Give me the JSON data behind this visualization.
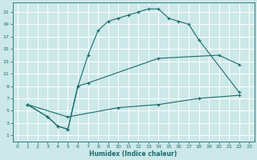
{
  "xlabel": "Humidex (Indice chaleur)",
  "bg_color": "#cce8e8",
  "grid_color": "#ffffff",
  "line_color": "#1a6b6b",
  "xlim": [
    -0.5,
    23.5
  ],
  "ylim": [
    0,
    22.5
  ],
  "xticks": [
    0,
    1,
    2,
    3,
    4,
    5,
    6,
    7,
    8,
    9,
    10,
    11,
    12,
    13,
    14,
    15,
    16,
    17,
    18,
    19,
    20,
    21,
    22,
    23
  ],
  "yticks": [
    1,
    3,
    5,
    7,
    9,
    11,
    13,
    15,
    17,
    19,
    21
  ],
  "curve1_x": [
    1,
    3,
    4,
    5,
    6,
    7,
    8,
    9,
    10,
    11,
    12,
    13,
    14,
    15,
    16,
    17,
    18,
    22
  ],
  "curve1_y": [
    6,
    4,
    2.5,
    2,
    9,
    14,
    18,
    19.5,
    20,
    20.5,
    21,
    21.5,
    21.5,
    20,
    19.5,
    19,
    16.5,
    8
  ],
  "curve2_x": [
    1,
    3,
    4,
    5,
    6,
    7,
    14,
    20,
    22
  ],
  "curve2_y": [
    6,
    4,
    2.5,
    2,
    9,
    9.5,
    13.5,
    14,
    12.5
  ],
  "curve3_x": [
    1,
    5,
    10,
    14,
    18,
    22
  ],
  "curve3_y": [
    6,
    4,
    5.5,
    6,
    7,
    7.5
  ]
}
